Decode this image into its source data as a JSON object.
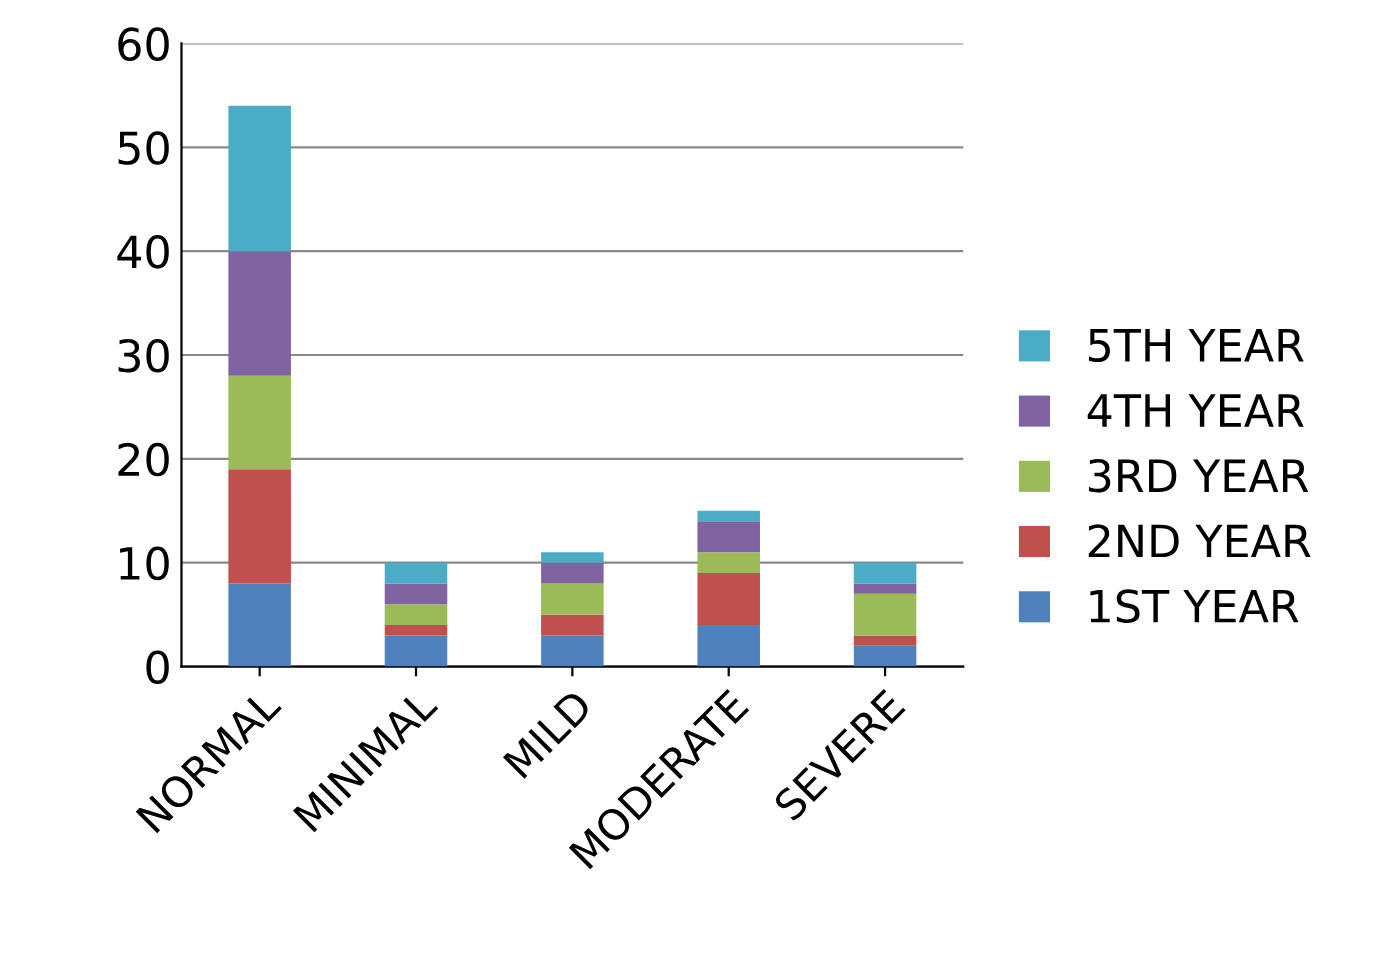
{
  "chart_data": {
    "type": "bar",
    "stacked": true,
    "categories": [
      "NORMAL",
      "MINIMAL",
      "MILD",
      "MODERATE",
      "SEVERE"
    ],
    "series": [
      {
        "name": "1ST YEAR",
        "color": "#4f81bd",
        "values": [
          8,
          3,
          3,
          4,
          2
        ]
      },
      {
        "name": "2ND YEAR",
        "color": "#c0504d",
        "values": [
          11,
          1,
          2,
          5,
          1
        ]
      },
      {
        "name": "3RD YEAR",
        "color": "#9bbb59",
        "values": [
          9,
          2,
          3,
          2,
          4
        ]
      },
      {
        "name": "4TH YEAR",
        "color": "#8064a2",
        "values": [
          12,
          2,
          2,
          3,
          1
        ]
      },
      {
        "name": "5TH YEAR",
        "color": "#4bacc6",
        "values": [
          14,
          2,
          1,
          1,
          2
        ]
      }
    ],
    "ylim": [
      0,
      60
    ],
    "yticks": [
      0,
      10,
      20,
      30,
      40,
      50,
      60
    ],
    "grid": "y",
    "legend": "right"
  }
}
